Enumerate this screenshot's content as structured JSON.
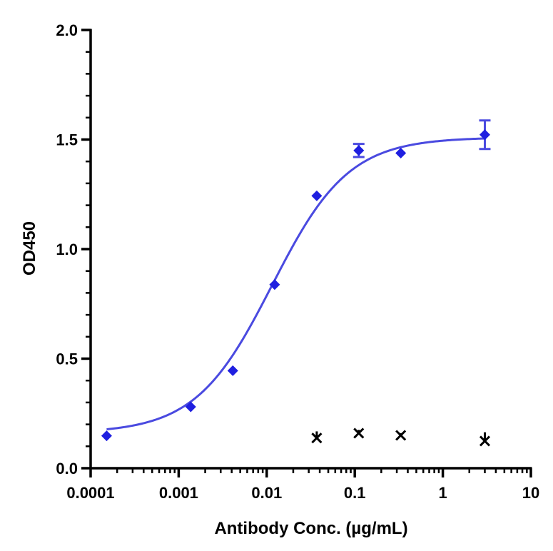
{
  "chart_data": {
    "type": "scatter",
    "xlabel": "Antibody Conc. (µg/mL)",
    "ylabel": "OD450",
    "x_scale": "log",
    "xlim": [
      0.0001,
      10
    ],
    "ylim": [
      0,
      2.0
    ],
    "x_ticks": [
      {
        "value": 0.0001,
        "label": "0.0001"
      },
      {
        "value": 0.001,
        "label": "0.001"
      },
      {
        "value": 0.01,
        "label": "0.01"
      },
      {
        "value": 0.1,
        "label": "0.1"
      },
      {
        "value": 1,
        "label": "1"
      },
      {
        "value": 10,
        "label": "10"
      }
    ],
    "y_ticks": [
      {
        "value": 0,
        "label": "0.0"
      },
      {
        "value": 0.5,
        "label": "0.5"
      },
      {
        "value": 1.0,
        "label": "1.0"
      },
      {
        "value": 1.5,
        "label": "1.5"
      },
      {
        "value": 2.0,
        "label": "2.0"
      }
    ],
    "grid": false,
    "series": [
      {
        "marker": "diamond",
        "color": "#1f1fe0",
        "fit_color": "#4a4ae0",
        "fit": "4PL",
        "x": [
          0.000152,
          0.00137,
          0.00412,
          0.0123,
          0.037,
          0.111,
          0.333,
          3.0
        ],
        "y": [
          0.148,
          0.28,
          0.445,
          0.838,
          1.243,
          1.45,
          1.438,
          1.522
        ],
        "error": [
          0,
          0,
          0,
          0,
          0,
          0.03,
          0,
          0.065
        ]
      },
      {
        "marker": "cross",
        "color": "#000000",
        "x": [
          0.037,
          0.111,
          0.333,
          3.0
        ],
        "y": [
          0.138,
          0.16,
          0.15,
          0.124
        ],
        "error": [
          0.03,
          0.015,
          0.01,
          0.04
        ]
      }
    ]
  }
}
